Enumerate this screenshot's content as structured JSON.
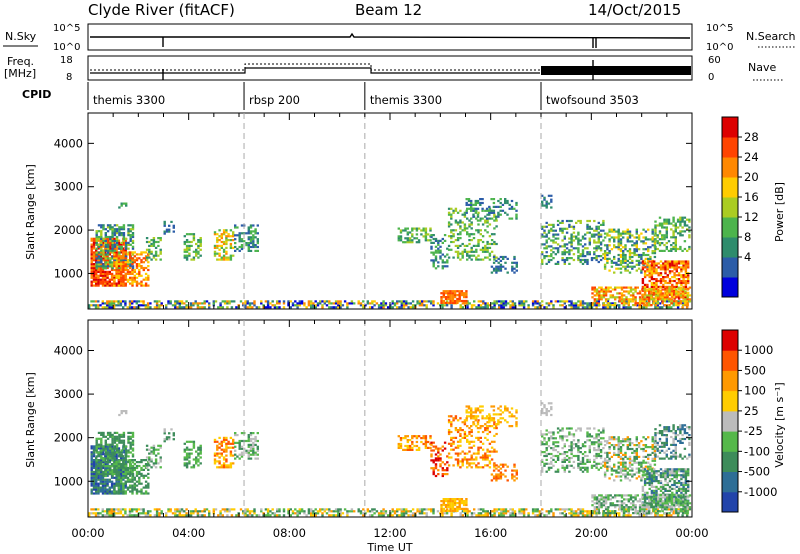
{
  "header": {
    "station": "Clyde River (fitACF)",
    "beam": "Beam 12",
    "date": "14/Oct/2015"
  },
  "top_panels": {
    "nsky_label": "N.Sky",
    "nsky_ticks": [
      "10^5",
      "10^0"
    ],
    "nsearch_label": "N.Search",
    "nsearch_ticks": [
      "10^5",
      "10^0"
    ],
    "freq_label_1": "Freq.",
    "freq_label_2": "[MHz]",
    "freq_ticks": [
      "18",
      "8"
    ],
    "nave_label": "Nave",
    "nave_ticks": [
      "60",
      "0"
    ],
    "cpid_label": "CPID",
    "cpid_segments": [
      {
        "name": "themis 3300",
        "start_h": 0,
        "end_h": 6.2
      },
      {
        "name": "rbsp 200",
        "start_h": 6.2,
        "end_h": 11.0
      },
      {
        "name": "themis 3300",
        "start_h": 11.0,
        "end_h": 18.0
      },
      {
        "name": "twofsound 3503",
        "start_h": 18.0,
        "end_h": 24.0
      }
    ]
  },
  "chart_data": [
    {
      "type": "heatmap",
      "title": "",
      "ylabel": "Slant Range [km]",
      "xlabel": "",
      "xlim": [
        0,
        24
      ],
      "ylim": [
        180,
        4700
      ],
      "yticks": [
        "4000",
        "3000",
        "2000",
        "1000"
      ],
      "colorbar_label": "Power [dB]",
      "colorbar_ticks": [
        "28",
        "24",
        "20",
        "16",
        "12",
        "8",
        "4"
      ],
      "colors": [
        "#0000dd",
        "#2b5ca8",
        "#2e8c6c",
        "#4cb44c",
        "#aacc22",
        "#ffcc00",
        "#ff8800",
        "#ff4400",
        "#dd0000"
      ]
    },
    {
      "type": "heatmap",
      "title": "",
      "ylabel": "Slant Range [km]",
      "xlabel": "Time UT",
      "xlim": [
        0,
        24
      ],
      "ylim": [
        180,
        4700
      ],
      "yticks": [
        "4000",
        "3000",
        "2000",
        "1000"
      ],
      "xticks": [
        "00:00",
        "04:00",
        "08:00",
        "12:00",
        "16:00",
        "20:00",
        "00:00"
      ],
      "colorbar_label": "Velocity [m s⁻¹]",
      "colorbar_ticks": [
        "1000",
        "500",
        "100",
        "25",
        "-25",
        "-100",
        "-500",
        "-1000"
      ],
      "colors": [
        "#2244aa",
        "#2e6e96",
        "#3d8c5a",
        "#55b84a",
        "#bcbcbc",
        "#ffcc00",
        "#ff9900",
        "#ff5500",
        "#dd0000"
      ]
    }
  ]
}
